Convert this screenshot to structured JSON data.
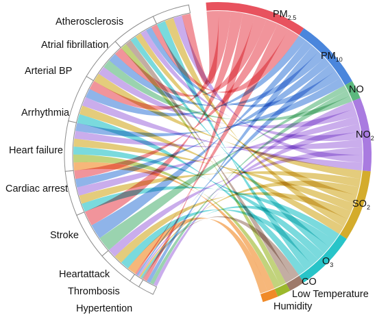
{
  "diagram": {
    "type": "chord",
    "outcomes": [
      {
        "id": "atherosclerosis",
        "label": "Atherosclerosis"
      },
      {
        "id": "atrial_fibrillation",
        "label": "Atrial fibrillation"
      },
      {
        "id": "arterial_bp",
        "label": "Arterial BP"
      },
      {
        "id": "arrhythmia",
        "label": "Arrhythmia"
      },
      {
        "id": "heart_failure",
        "label": "Heart failure"
      },
      {
        "id": "cardiac_arrest",
        "label": "Cardiac arrest"
      },
      {
        "id": "stroke",
        "label": "Stroke"
      },
      {
        "id": "heartattack",
        "label": "Heartattack"
      },
      {
        "id": "thrombosis",
        "label": "Thrombosis"
      },
      {
        "id": "hypertention",
        "label": "Hypertention"
      }
    ],
    "exposures": [
      {
        "id": "pm25",
        "main": "PM",
        "sub": "2.5",
        "color": "#e8525e"
      },
      {
        "id": "pm10",
        "main": "PM",
        "sub": "10",
        "color": "#4a86dc"
      },
      {
        "id": "no",
        "main": "NO",
        "sub": "",
        "color": "#5cb87e"
      },
      {
        "id": "no2",
        "main": "NO",
        "sub": "2",
        "color": "#a97be0"
      },
      {
        "id": "so2",
        "main": "SO",
        "sub": "2",
        "color": "#d4ac2c"
      },
      {
        "id": "o3",
        "main": "O",
        "sub": "3",
        "color": "#28c4c8"
      },
      {
        "id": "co",
        "main": "CO",
        "sub": "",
        "color": "#9e7a6a"
      },
      {
        "id": "lowtemp",
        "main": "Low Temperature",
        "sub": "",
        "color": "#9cb82c"
      },
      {
        "id": "humidity",
        "main": "Humidity",
        "sub": "",
        "color": "#f08a28"
      }
    ]
  }
}
